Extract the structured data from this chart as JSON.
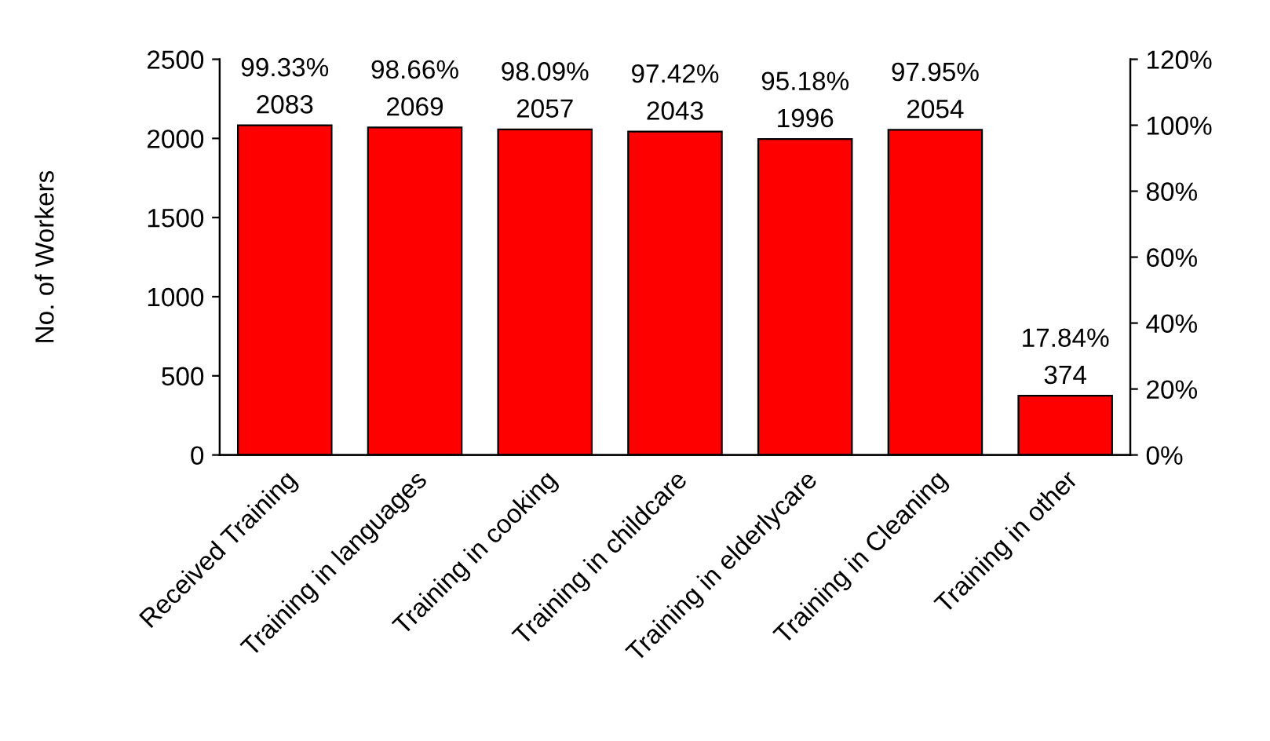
{
  "chart_data": {
    "type": "bar",
    "categories": [
      "Received Training",
      "Training in languages",
      "Training in cooking",
      "Training in childcare",
      "Training in elderlycare",
      "Training in Cleaning",
      "Training in other"
    ],
    "values": [
      2083,
      2069,
      2057,
      2043,
      1996,
      2054,
      374
    ],
    "color": "#ff0000",
    "ylabel": "No. of Workers",
    "ylim": [
      0,
      2500
    ],
    "yticks": [
      0,
      500,
      1000,
      1500,
      2000,
      2500
    ],
    "y2lim": [
      0,
      120
    ],
    "y2ticks": [
      {
        "value": 0,
        "label": "0%"
      },
      {
        "value": 20,
        "label": "20%"
      },
      {
        "value": 40,
        "label": "40%"
      },
      {
        "value": 60,
        "label": "60%"
      },
      {
        "value": 80,
        "label": "80%"
      },
      {
        "value": 100,
        "label": "100%"
      },
      {
        "value": 120,
        "label": "120%"
      }
    ],
    "data_labels": true,
    "annotations": [
      {
        "text": "99.33%",
        "x": "Received Training",
        "y": 2083
      },
      {
        "text": "98.66%",
        "x": "Training in languages",
        "y": 2069
      },
      {
        "text": "98.09%",
        "x": "Training in cooking",
        "y": 2057
      },
      {
        "text": "97.42%",
        "x": "Training in childcare",
        "y": 2043
      },
      {
        "text": "95.18%",
        "x": "Training in elderlycare",
        "y": 1996
      },
      {
        "text": "97.95%",
        "x": "Training in Cleaning",
        "y": 2054
      },
      {
        "text": "17.84%",
        "x": "Training in other",
        "y": 374
      }
    ],
    "grid": false,
    "legend": false
  }
}
